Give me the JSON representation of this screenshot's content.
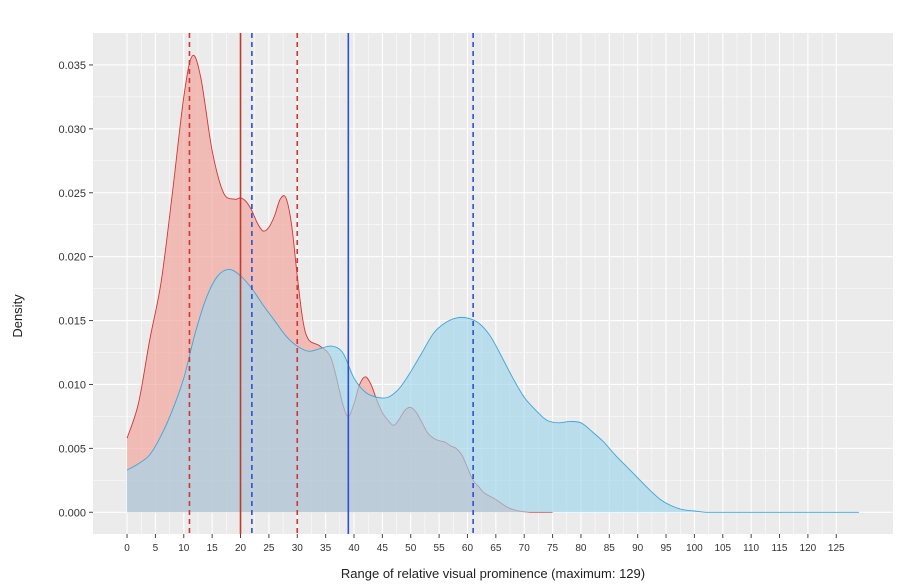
{
  "chart_data": {
    "type": "area",
    "title": "",
    "xlabel": "Range of relative visual prominence (maximum: 129)",
    "ylabel": "Density",
    "xlim": [
      -6,
      135
    ],
    "ylim": [
      -0.0017,
      0.0375
    ],
    "x_ticks": [
      0,
      5,
      10,
      15,
      20,
      25,
      30,
      35,
      40,
      45,
      50,
      55,
      60,
      65,
      70,
      75,
      80,
      85,
      90,
      95,
      100,
      105,
      110,
      115,
      120,
      125
    ],
    "x_tick_labels": [
      "0",
      "5",
      "10",
      "15",
      "20",
      "25",
      "30",
      "35",
      "40",
      "45",
      "50",
      "55",
      "60",
      "65",
      "70",
      "75",
      "80",
      "85",
      "90",
      "95",
      "100",
      "105",
      "110",
      "115",
      "120",
      "125"
    ],
    "y_ticks": [
      0,
      0.005,
      0.01,
      0.015,
      0.02,
      0.025,
      0.03,
      0.035
    ],
    "y_tick_labels": [
      "0.000",
      "0.005",
      "0.010",
      "0.015",
      "0.020",
      "0.025",
      "0.030",
      "0.035"
    ],
    "grid": true,
    "legend": "none",
    "series": [
      {
        "fill": "#f4a69e",
        "stroke": "#d03535",
        "fill_opacity": 0.7,
        "x": [
          0,
          2,
          4,
          6,
          8,
          10,
          11.5,
          13,
          15,
          17,
          19,
          20,
          21,
          22,
          23,
          24,
          25,
          26,
          27,
          28,
          29,
          30,
          31,
          32,
          34,
          36,
          38,
          39,
          40,
          41,
          42,
          43,
          44,
          45,
          46,
          47,
          48,
          49,
          50,
          51,
          52,
          53,
          54,
          55,
          56,
          57,
          58,
          59,
          60,
          61,
          62,
          63,
          65,
          67,
          69,
          71,
          73,
          75
        ],
        "y": [
          0.0058,
          0.0085,
          0.0135,
          0.018,
          0.025,
          0.0325,
          0.0357,
          0.034,
          0.0283,
          0.025,
          0.0245,
          0.0246,
          0.0243,
          0.0236,
          0.0226,
          0.022,
          0.0223,
          0.0232,
          0.0245,
          0.0246,
          0.0225,
          0.0185,
          0.015,
          0.0135,
          0.013,
          0.012,
          0.0085,
          0.0075,
          0.0085,
          0.01,
          0.0106,
          0.01,
          0.0088,
          0.0078,
          0.0072,
          0.0068,
          0.0073,
          0.008,
          0.0082,
          0.0078,
          0.007,
          0.0062,
          0.0058,
          0.0056,
          0.0055,
          0.0052,
          0.005,
          0.0045,
          0.0035,
          0.0025,
          0.002,
          0.0015,
          0.001,
          0.0004,
          0.0001,
          0.0,
          0.0,
          0.0
        ]
      },
      {
        "fill": "#9fd6ec",
        "stroke": "#3ba6d8",
        "fill_opacity": 0.65,
        "x": [
          0,
          2,
          4,
          6,
          8,
          10,
          12,
          14,
          16,
          18,
          20,
          22,
          24,
          26,
          28,
          30,
          32,
          34,
          36,
          38,
          40,
          42,
          44,
          46,
          48,
          50,
          52,
          54,
          56,
          58,
          60,
          62,
          64,
          66,
          68,
          70,
          72,
          74,
          76,
          78,
          80,
          82,
          84,
          86,
          88,
          90,
          92,
          94,
          96,
          98,
          100,
          102,
          105,
          110,
          115,
          120,
          125,
          129
        ],
        "y": [
          0.0033,
          0.0038,
          0.0045,
          0.006,
          0.008,
          0.0105,
          0.014,
          0.0168,
          0.0185,
          0.019,
          0.0185,
          0.0175,
          0.0162,
          0.015,
          0.0138,
          0.013,
          0.0126,
          0.0128,
          0.013,
          0.0125,
          0.0105,
          0.0094,
          0.009,
          0.009,
          0.0097,
          0.011,
          0.0125,
          0.014,
          0.0148,
          0.0152,
          0.0152,
          0.0148,
          0.0138,
          0.0122,
          0.0105,
          0.009,
          0.008,
          0.0072,
          0.007,
          0.0071,
          0.007,
          0.0063,
          0.0055,
          0.0045,
          0.0036,
          0.0027,
          0.0018,
          0.001,
          0.0005,
          0.0002,
          0.0001,
          0.0,
          0.0,
          0.0,
          0.0,
          0.0,
          0.0,
          0.0
        ]
      }
    ],
    "reference_lines": [
      {
        "x": 11,
        "color": "#d03535",
        "style": "dashed"
      },
      {
        "x": 20,
        "color": "#c0392b",
        "style": "solid"
      },
      {
        "x": 30,
        "color": "#d03535",
        "style": "dashed"
      },
      {
        "x": 22,
        "color": "#2d4fd6",
        "style": "dashed"
      },
      {
        "x": 39,
        "color": "#2d4fd6",
        "style": "solid"
      },
      {
        "x": 61,
        "color": "#2d4fd6",
        "style": "dashed"
      }
    ],
    "panel_background": "#ebebeb",
    "gridline_color": "#ffffff"
  }
}
